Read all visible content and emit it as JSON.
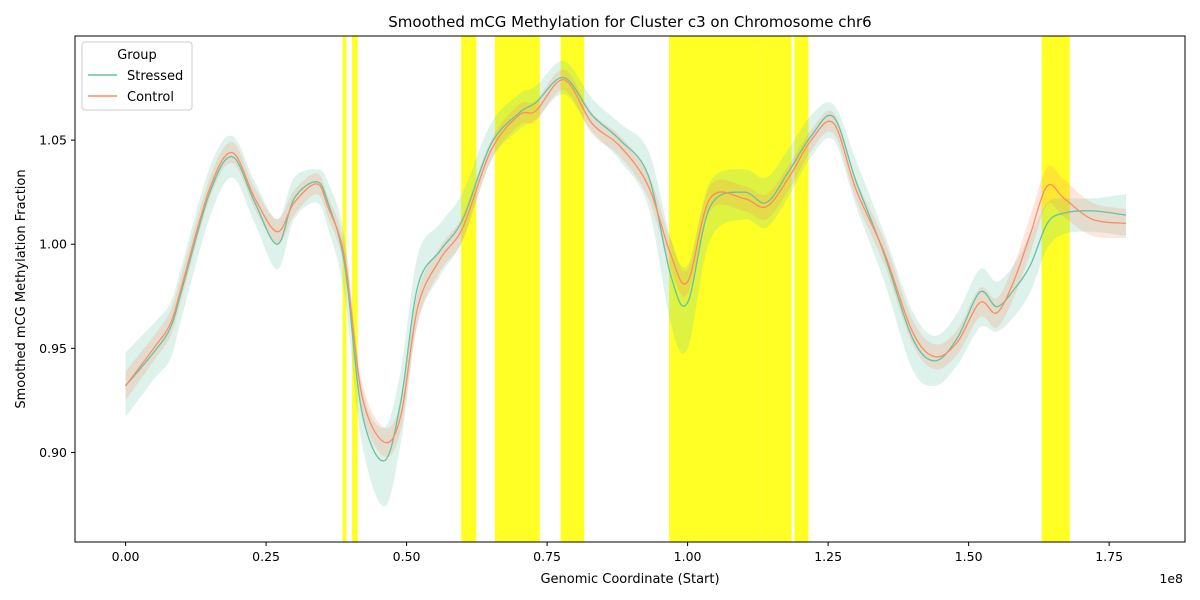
{
  "chart_data": {
    "type": "line",
    "title": "Smoothed mCG Methylation for Cluster c3 on Chromosome chr6",
    "xlabel": "Genomic Coordinate (Start)",
    "ylabel": "Smoothed mCG Methylation Fraction",
    "x_offset_label": "1e8",
    "xlim": [
      -0.09,
      1.885
    ],
    "ylim": [
      0.857,
      1.1
    ],
    "xticks": [
      0.0,
      0.25,
      0.5,
      0.75,
      1.0,
      1.25,
      1.5,
      1.75
    ],
    "xtick_labels": [
      "0.00",
      "0.25",
      "0.50",
      "0.75",
      "1.00",
      "1.25",
      "1.50",
      "1.75"
    ],
    "yticks": [
      0.9,
      0.95,
      1.0,
      1.05
    ],
    "ytick_labels": [
      "0.90",
      "0.95",
      "1.00",
      "1.05"
    ],
    "grid": false,
    "legend": {
      "title": "Group",
      "position": "top-left"
    },
    "highlight_color": "#ffff00",
    "highlight_regions": [
      [
        0.386,
        0.393
      ],
      [
        0.403,
        0.413
      ],
      [
        0.597,
        0.624
      ],
      [
        0.657,
        0.737
      ],
      [
        0.774,
        0.816
      ],
      [
        0.967,
        1.132
      ],
      [
        1.132,
        1.185
      ],
      [
        1.19,
        1.215
      ],
      [
        1.63,
        1.68
      ]
    ],
    "series": [
      {
        "name": "Stressed",
        "color": "#66c2a5",
        "band_color": "#66c2a5",
        "x": [
          0.0,
          0.05,
          0.08,
          0.1,
          0.15,
          0.19,
          0.23,
          0.27,
          0.3,
          0.34,
          0.36,
          0.39,
          0.42,
          0.46,
          0.49,
          0.52,
          0.56,
          0.6,
          0.65,
          0.7,
          0.73,
          0.78,
          0.83,
          0.88,
          0.93,
          0.97,
          1.0,
          1.04,
          1.1,
          1.14,
          1.18,
          1.22,
          1.26,
          1.3,
          1.35,
          1.4,
          1.44,
          1.48,
          1.52,
          1.55,
          1.58,
          1.61,
          1.64,
          1.67,
          1.72,
          1.78
        ],
        "y": [
          0.932,
          0.948,
          0.96,
          0.978,
          1.025,
          1.042,
          1.02,
          1.0,
          1.022,
          1.03,
          1.02,
          0.99,
          0.92,
          0.896,
          0.925,
          0.98,
          0.997,
          1.012,
          1.048,
          1.063,
          1.068,
          1.08,
          1.062,
          1.05,
          1.033,
          0.985,
          0.972,
          1.018,
          1.025,
          1.02,
          1.035,
          1.052,
          1.061,
          1.03,
          0.995,
          0.955,
          0.944,
          0.955,
          0.977,
          0.97,
          0.978,
          0.99,
          1.01,
          1.015,
          1.016,
          1.014
        ],
        "lower": [
          0.917,
          0.935,
          0.945,
          0.965,
          1.013,
          1.032,
          1.01,
          0.988,
          1.012,
          1.02,
          1.008,
          0.975,
          0.905,
          0.874,
          0.905,
          0.962,
          0.985,
          1.002,
          1.04,
          1.055,
          1.06,
          1.072,
          1.054,
          1.04,
          1.018,
          0.962,
          0.95,
          1.002,
          1.012,
          1.008,
          1.023,
          1.042,
          1.05,
          1.018,
          0.982,
          0.94,
          0.932,
          0.942,
          0.96,
          0.958,
          0.965,
          0.977,
          0.998,
          1.005,
          1.006,
          1.004
        ],
        "upper": [
          0.948,
          0.962,
          0.972,
          0.99,
          1.037,
          1.052,
          1.03,
          1.012,
          1.032,
          1.036,
          1.03,
          1.003,
          0.932,
          0.912,
          0.94,
          0.995,
          1.01,
          1.025,
          1.058,
          1.072,
          1.076,
          1.088,
          1.07,
          1.058,
          1.045,
          1.003,
          0.99,
          1.03,
          1.036,
          1.032,
          1.046,
          1.062,
          1.067,
          1.04,
          1.005,
          0.968,
          0.956,
          0.967,
          0.988,
          0.982,
          0.99,
          1.005,
          1.02,
          1.022,
          1.022,
          1.024
        ]
      },
      {
        "name": "Control",
        "color": "#fc8d62",
        "band_color": "#fc8d62",
        "x": [
          0.0,
          0.05,
          0.08,
          0.1,
          0.15,
          0.19,
          0.23,
          0.27,
          0.3,
          0.34,
          0.36,
          0.39,
          0.42,
          0.46,
          0.49,
          0.52,
          0.56,
          0.6,
          0.65,
          0.7,
          0.73,
          0.78,
          0.83,
          0.88,
          0.93,
          0.97,
          1.0,
          1.04,
          1.1,
          1.14,
          1.18,
          1.22,
          1.26,
          1.3,
          1.35,
          1.4,
          1.44,
          1.48,
          1.52,
          1.55,
          1.58,
          1.61,
          1.64,
          1.67,
          1.72,
          1.78
        ],
        "y": [
          0.932,
          0.95,
          0.962,
          0.98,
          1.027,
          1.044,
          1.022,
          1.006,
          1.02,
          1.029,
          1.018,
          0.993,
          0.928,
          0.905,
          0.918,
          0.97,
          0.993,
          1.008,
          1.045,
          1.062,
          1.064,
          1.079,
          1.058,
          1.047,
          1.028,
          0.995,
          0.982,
          1.022,
          1.022,
          1.018,
          1.032,
          1.05,
          1.058,
          1.026,
          0.996,
          0.958,
          0.946,
          0.953,
          0.972,
          0.967,
          0.982,
          1.005,
          1.028,
          1.022,
          1.012,
          1.01
        ],
        "lower": [
          0.925,
          0.944,
          0.956,
          0.974,
          1.022,
          1.039,
          1.017,
          1.0,
          1.014,
          1.024,
          1.013,
          0.987,
          0.921,
          0.898,
          0.911,
          0.963,
          0.987,
          1.002,
          1.04,
          1.057,
          1.059,
          1.074,
          1.053,
          1.042,
          1.022,
          0.988,
          0.976,
          1.016,
          1.016,
          1.012,
          1.026,
          1.045,
          1.053,
          1.021,
          0.99,
          0.952,
          0.94,
          0.947,
          0.965,
          0.96,
          0.974,
          0.996,
          1.019,
          1.013,
          1.004,
          1.003
        ],
        "upper": [
          0.939,
          0.956,
          0.968,
          0.986,
          1.032,
          1.049,
          1.027,
          1.012,
          1.026,
          1.034,
          1.023,
          0.999,
          0.935,
          0.912,
          0.925,
          0.977,
          0.999,
          1.014,
          1.05,
          1.067,
          1.069,
          1.084,
          1.063,
          1.052,
          1.034,
          1.002,
          0.988,
          1.028,
          1.028,
          1.024,
          1.038,
          1.055,
          1.063,
          1.031,
          1.002,
          0.964,
          0.952,
          0.959,
          0.979,
          0.974,
          0.99,
          1.014,
          1.037,
          1.031,
          1.02,
          1.017
        ]
      }
    ]
  }
}
